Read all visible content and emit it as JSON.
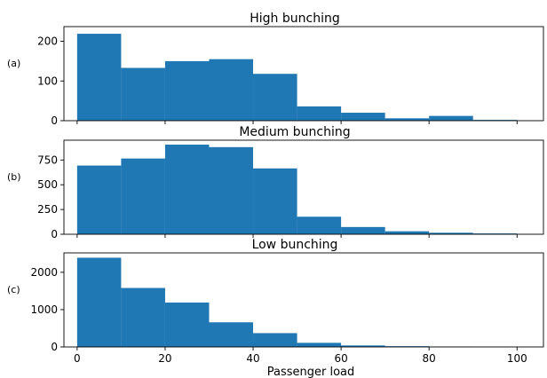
{
  "chart_data": [
    {
      "type": "bar",
      "title": "High bunching",
      "panel_label": "(a)",
      "x": [
        0,
        10,
        20,
        30,
        40,
        50,
        60,
        70,
        80,
        90
      ],
      "bin_width": 10,
      "values": [
        219,
        133,
        150,
        155,
        118,
        36,
        20,
        6,
        12,
        2
      ],
      "yticks": [
        0,
        100,
        200
      ],
      "ylim": [
        0,
        237
      ],
      "xlim": [
        -3,
        106
      ],
      "color": "#1f77b4",
      "show_xticklabels": false
    },
    {
      "type": "bar",
      "title": "Medium bunching",
      "panel_label": "(b)",
      "x": [
        0,
        10,
        20,
        30,
        40,
        50,
        60,
        70,
        80,
        90
      ],
      "bin_width": 10,
      "values": [
        694,
        765,
        905,
        880,
        665,
        177,
        73,
        30,
        15,
        8
      ],
      "yticks": [
        0,
        250,
        500,
        750
      ],
      "ylim": [
        0,
        950
      ],
      "xlim": [
        -3,
        106
      ],
      "color": "#1f77b4",
      "show_xticklabels": false
    },
    {
      "type": "bar",
      "title": "Low bunching",
      "panel_label": "(c)",
      "x": [
        0,
        10,
        20,
        30,
        40,
        50,
        60,
        70,
        80,
        90
      ],
      "bin_width": 10,
      "values": [
        2390,
        1580,
        1190,
        660,
        370,
        110,
        40,
        20,
        10,
        5
      ],
      "yticks": [
        0,
        1000,
        2000
      ],
      "ylim": [
        0,
        2520
      ],
      "xlim": [
        -3,
        106
      ],
      "xticks": [
        0,
        20,
        40,
        60,
        80,
        100
      ],
      "xlabel": "Passenger load",
      "color": "#1f77b4",
      "show_xticklabels": true
    }
  ]
}
